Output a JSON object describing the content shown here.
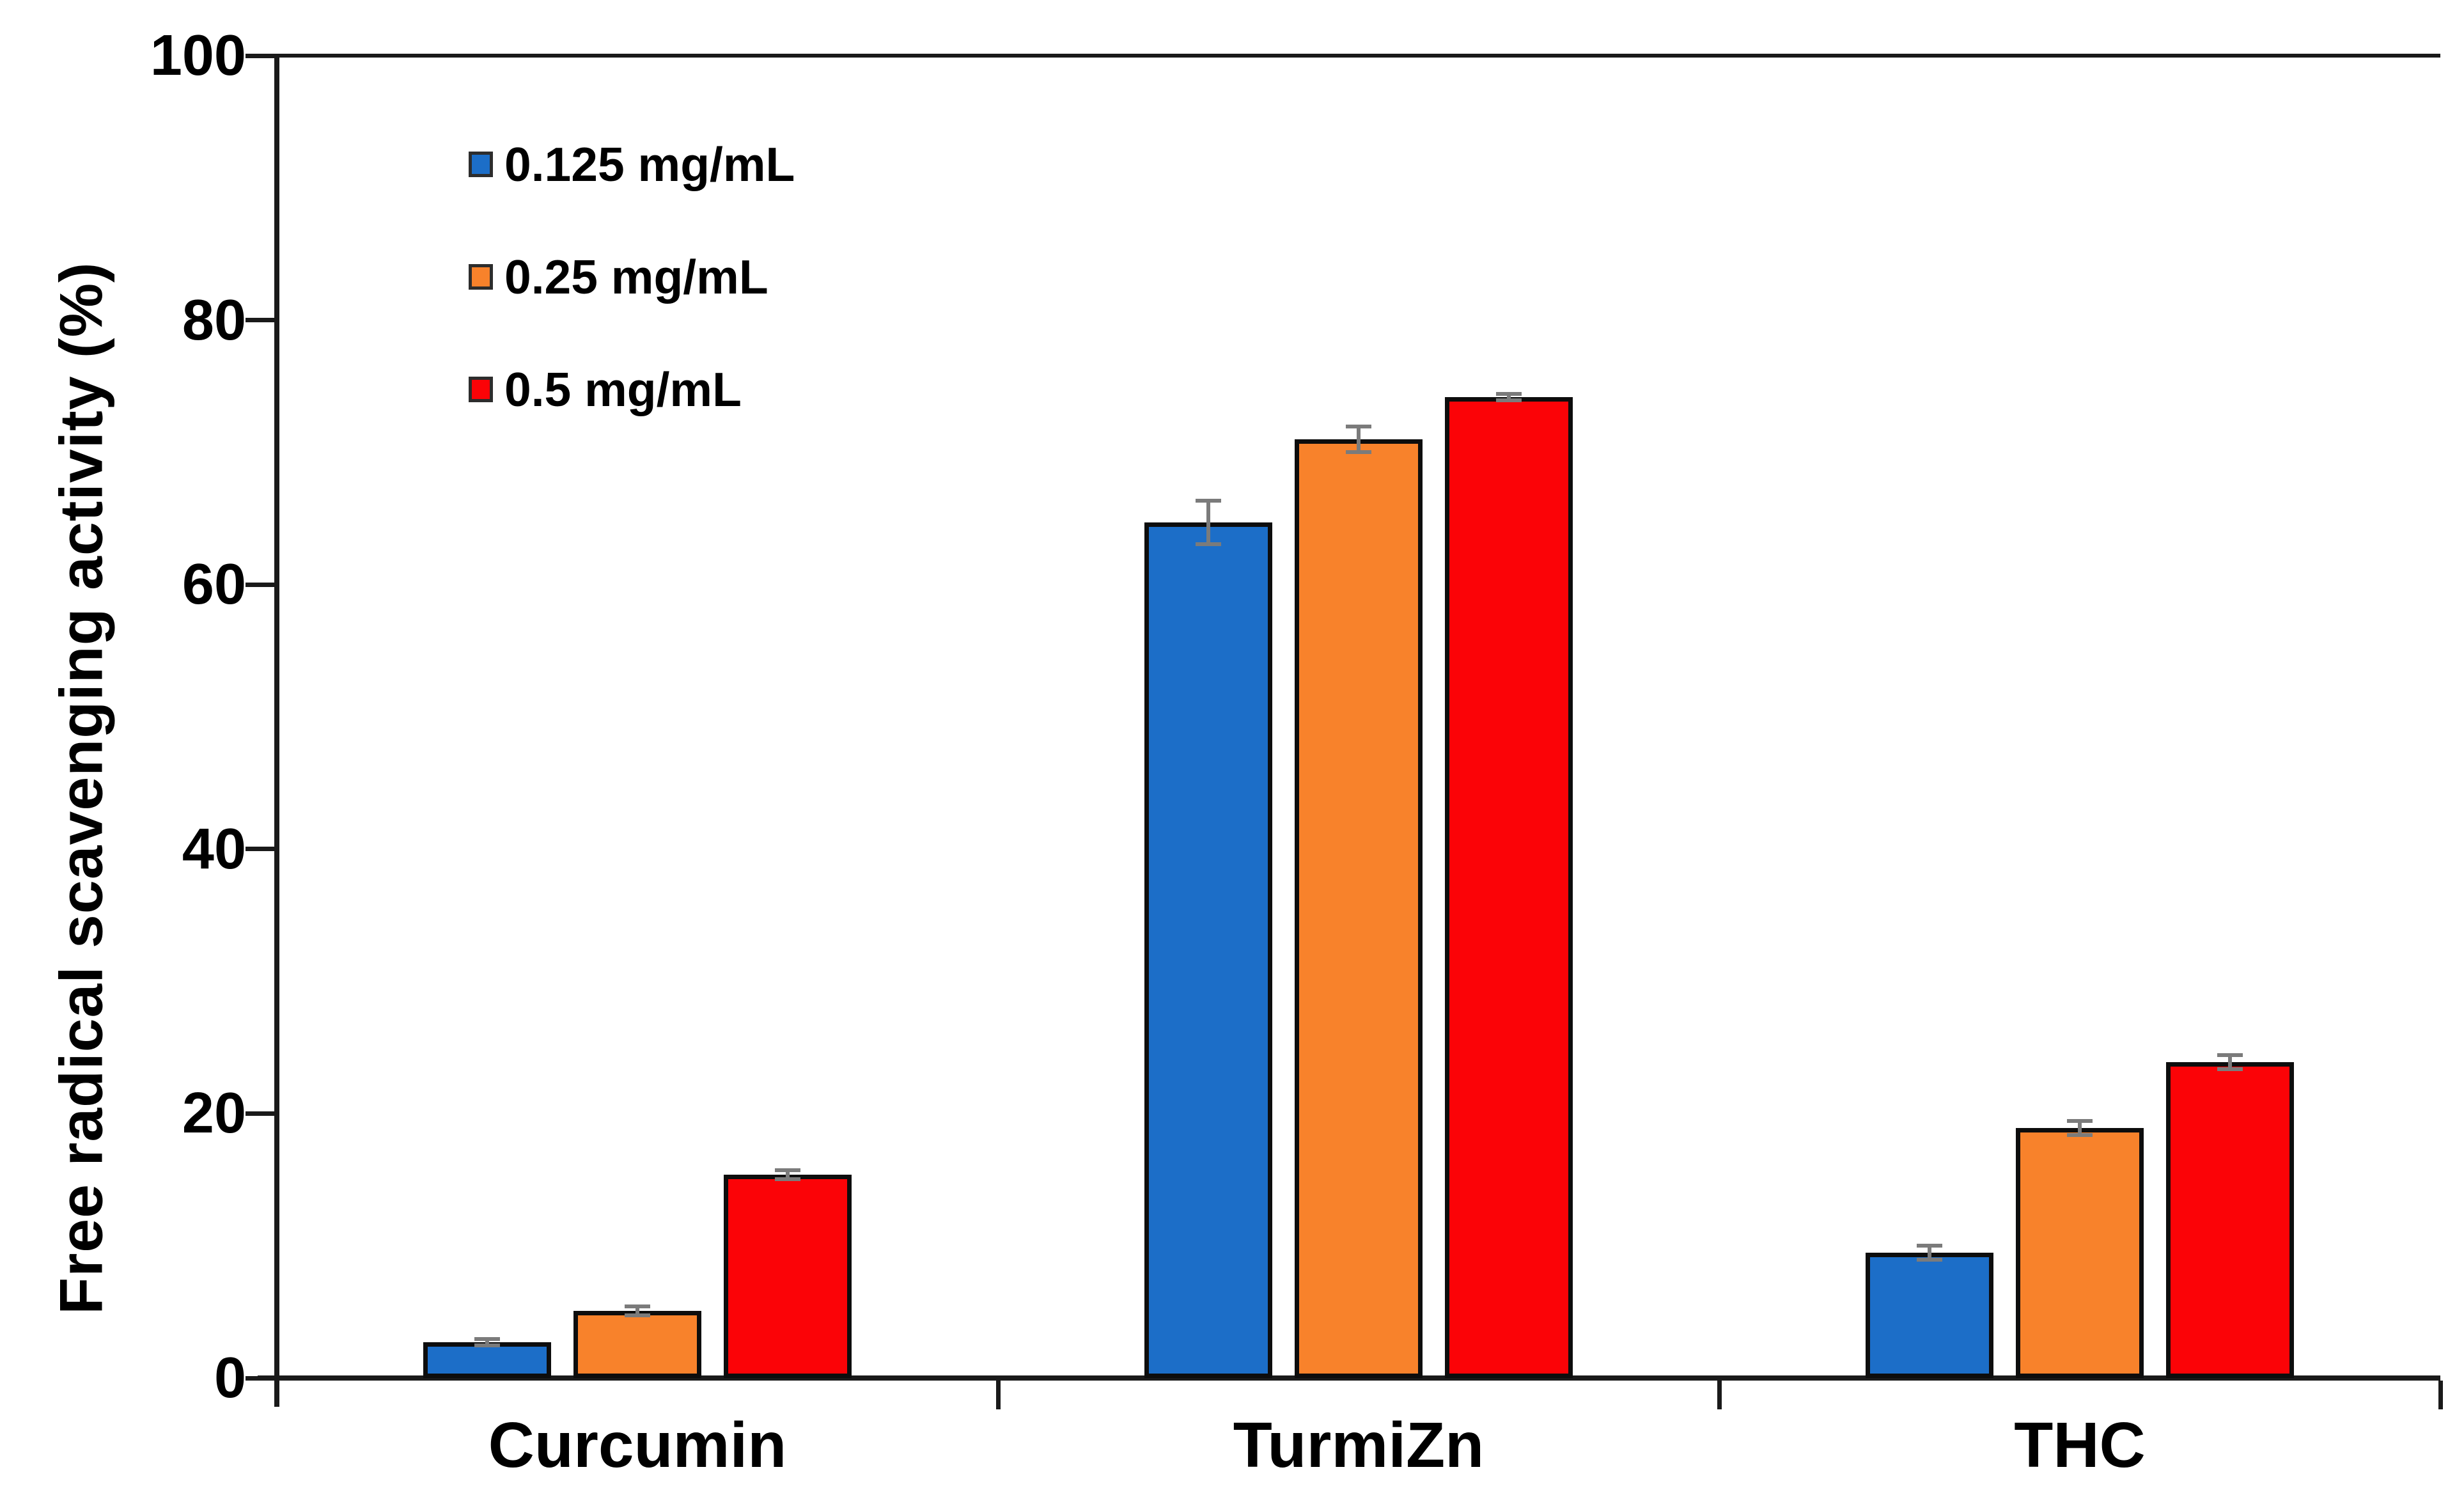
{
  "chart_data": {
    "type": "bar",
    "title": "",
    "xlabel": "",
    "ylabel": "Free radical scavenging activity (%)",
    "ylim": [
      0,
      100
    ],
    "yticks": [
      "0",
      "20",
      "40",
      "60",
      "80",
      "100"
    ],
    "grid": false,
    "legend_position": "upper-left-inside",
    "categories": [
      "Curcumin",
      "TurmiZn",
      "THC"
    ],
    "series": [
      {
        "name": "0.125 mg/mL",
        "color": "#1C6EC8",
        "values": [
          2.7,
          64.7,
          9.5
        ],
        "errors": [
          0.4,
          1.8,
          0.7
        ]
      },
      {
        "name": "0.25 mg/mL",
        "color": "#F8822B",
        "values": [
          5.1,
          71.0,
          18.9
        ],
        "errors": [
          0.5,
          1.1,
          0.7
        ]
      },
      {
        "name": "0.5 mg/mL",
        "color": "#FB0307",
        "values": [
          15.4,
          74.2,
          23.9
        ],
        "errors": [
          0.5,
          0.4,
          0.7
        ]
      }
    ],
    "error_bar_color": "#7B7B7B",
    "bar_border_color": "#0D0D0D",
    "axis_color": "#1A1A1A"
  }
}
